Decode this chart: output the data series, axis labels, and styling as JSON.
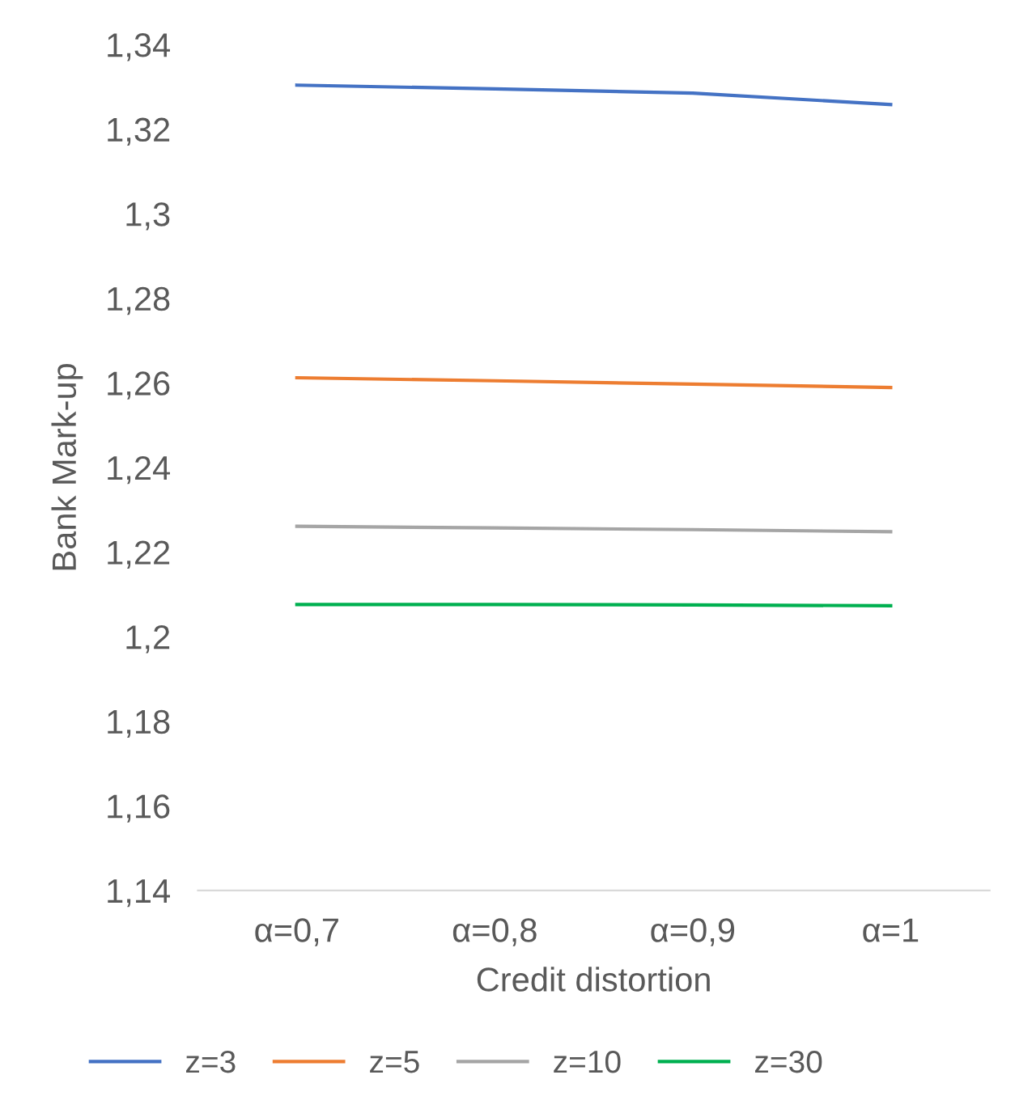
{
  "chart_data": {
    "type": "line",
    "xlabel": "Credit distortion",
    "ylabel": "Bank Mark-up",
    "categories": [
      "α=0,7",
      "α=0,8",
      "α=0,9",
      "α=1"
    ],
    "series": [
      {
        "name": "z=3",
        "color": "#4472c4",
        "values": [
          1.3304,
          1.3295,
          1.3285,
          1.3258
        ]
      },
      {
        "name": "z=5",
        "color": "#ed7d31",
        "values": [
          1.2612,
          1.2605,
          1.2597,
          1.2589
        ]
      },
      {
        "name": "z=10",
        "color": "#a5a5a5",
        "values": [
          1.2261,
          1.2257,
          1.2253,
          1.2248
        ]
      },
      {
        "name": "z=30",
        "color": "#00b050",
        "values": [
          1.2076,
          1.2076,
          1.2075,
          1.2073
        ]
      }
    ],
    "ylim": [
      1.14,
      1.34
    ],
    "yticks": [
      {
        "value": 1.14,
        "label": "1,14"
      },
      {
        "value": 1.16,
        "label": "1,16"
      },
      {
        "value": 1.18,
        "label": "1,18"
      },
      {
        "value": 1.2,
        "label": "1,2"
      },
      {
        "value": 1.22,
        "label": "1,22"
      },
      {
        "value": 1.24,
        "label": "1,24"
      },
      {
        "value": 1.26,
        "label": "1,26"
      },
      {
        "value": 1.28,
        "label": "1,28"
      },
      {
        "value": 1.3,
        "label": "1,3"
      },
      {
        "value": 1.32,
        "label": "1,32"
      },
      {
        "value": 1.34,
        "label": "1,34"
      }
    ],
    "legend": "bottom",
    "marker": "none",
    "line_style": "solid"
  }
}
